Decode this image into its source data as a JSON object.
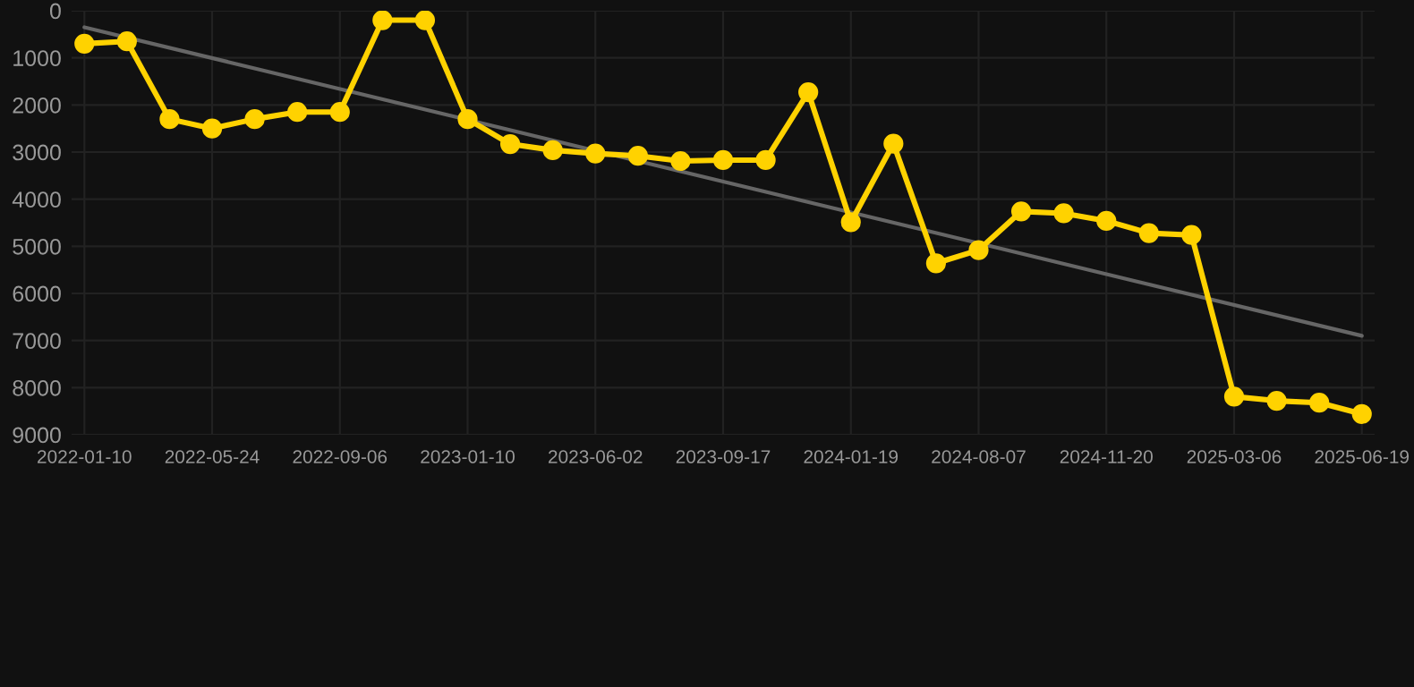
{
  "chart_data": {
    "type": "line",
    "categories": [
      "2022-01-10",
      null,
      null,
      "2022-05-24",
      null,
      null,
      "2022-09-06",
      null,
      null,
      "2023-01-10",
      null,
      null,
      "2023-06-02",
      null,
      null,
      "2023-09-17",
      null,
      null,
      "2024-01-19",
      null,
      null,
      "2024-08-07",
      null,
      null,
      "2024-11-20",
      null,
      null,
      "2025-03-06",
      null,
      null,
      "2025-06-19"
    ],
    "series": [
      {
        "color": "#ffd200",
        "marker": "circle",
        "values": [
          700,
          650,
          2300,
          2500,
          2300,
          2150,
          2150,
          200,
          200,
          2300,
          2830,
          2960,
          3030,
          3080,
          3190,
          3170,
          3170,
          1730,
          4490,
          2820,
          5360,
          5080,
          4260,
          4300,
          4460,
          4720,
          4760,
          8190,
          8280,
          8320,
          8560
        ]
      },
      {
        "type": "line",
        "color": "#666666",
        "marker": "none",
        "values": [
          350,
          null,
          null,
          null,
          null,
          null,
          null,
          null,
          null,
          null,
          null,
          null,
          null,
          null,
          null,
          null,
          null,
          null,
          null,
          null,
          null,
          null,
          null,
          null,
          null,
          null,
          null,
          null,
          null,
          null,
          6900
        ]
      }
    ],
    "ylim": [
      9000,
      0
    ],
    "yticks": [
      0,
      1000,
      2000,
      3000,
      4000,
      5000,
      6000,
      7000,
      8000,
      9000
    ],
    "grid": true,
    "legend": false,
    "line_style": "solid"
  }
}
